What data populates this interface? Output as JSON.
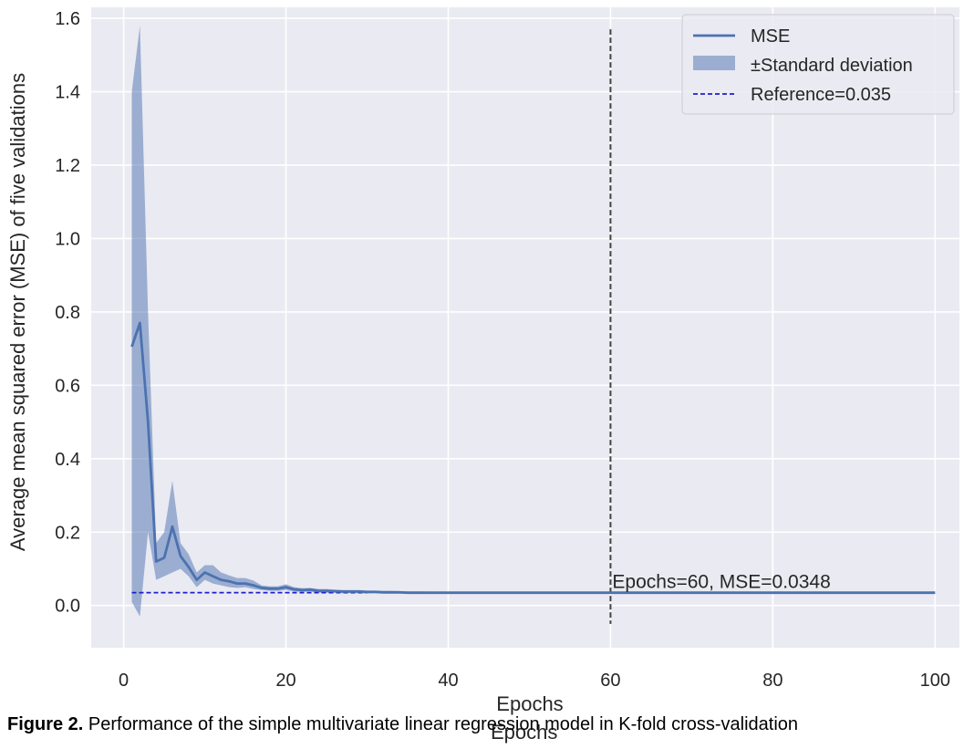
{
  "chart_data": {
    "type": "line",
    "xlabel": "Epochs",
    "ylabel": "Average mean squared error (MSE) of five validations",
    "xlim": [
      -4,
      103
    ],
    "ylim": [
      -0.115,
      1.63
    ],
    "xticks": [
      0,
      20,
      40,
      60,
      80,
      100
    ],
    "yticks": [
      0.0,
      0.2,
      0.4,
      0.6,
      0.8,
      1.0,
      1.2,
      1.4,
      1.6
    ],
    "xtick_labels": [
      "0",
      "20",
      "40",
      "60",
      "80",
      "100"
    ],
    "ytick_labels": [
      "0.0",
      "0.2",
      "0.4",
      "0.6",
      "0.8",
      "1.0",
      "1.2",
      "1.4",
      "1.6"
    ],
    "grid": true,
    "legend_position": "top-right",
    "colors": {
      "mse": "#4c72b0",
      "band": "#4c72b0",
      "reference": "#1f1fcc",
      "vline": "#444444",
      "background": "#eaeaf2",
      "grid": "#ffffff"
    },
    "series": [
      {
        "name": "MSE",
        "x": [
          1,
          2,
          3,
          4,
          5,
          6,
          7,
          8,
          9,
          10,
          11,
          12,
          13,
          14,
          15,
          16,
          17,
          18,
          19,
          20,
          21,
          22,
          23,
          24,
          25,
          26,
          27,
          28,
          29,
          30,
          31,
          32,
          33,
          34,
          35,
          36,
          37,
          38,
          39,
          40,
          45,
          50,
          55,
          60,
          65,
          70,
          75,
          80,
          85,
          90,
          95,
          100
        ],
        "y": [
          0.705,
          0.77,
          0.5,
          0.12,
          0.13,
          0.215,
          0.135,
          0.105,
          0.07,
          0.09,
          0.08,
          0.07,
          0.066,
          0.06,
          0.06,
          0.055,
          0.048,
          0.046,
          0.046,
          0.05,
          0.044,
          0.042,
          0.043,
          0.04,
          0.04,
          0.039,
          0.038,
          0.038,
          0.038,
          0.037,
          0.037,
          0.036,
          0.036,
          0.036,
          0.035,
          0.035,
          0.035,
          0.035,
          0.035,
          0.035,
          0.035,
          0.035,
          0.035,
          0.0348,
          0.035,
          0.035,
          0.035,
          0.035,
          0.035,
          0.035,
          0.035,
          0.035
        ]
      },
      {
        "name": "±Standard deviation",
        "x": [
          1,
          2,
          3,
          4,
          5,
          6,
          7,
          8,
          9,
          10,
          11,
          12,
          13,
          14,
          15,
          16,
          17,
          18,
          19,
          20,
          21,
          22,
          23,
          24,
          25,
          26,
          27,
          28,
          29,
          30,
          31,
          32,
          33,
          34,
          35,
          36,
          37,
          38,
          39,
          40,
          45,
          50,
          55,
          60,
          65,
          70,
          75,
          80,
          85,
          90,
          95,
          100
        ],
        "lower": [
          0.01,
          -0.03,
          0.2,
          0.07,
          0.08,
          0.09,
          0.1,
          0.08,
          0.05,
          0.07,
          0.06,
          0.055,
          0.05,
          0.048,
          0.05,
          0.045,
          0.042,
          0.04,
          0.04,
          0.042,
          0.038,
          0.037,
          0.038,
          0.035,
          0.035,
          0.035,
          0.034,
          0.034,
          0.034,
          0.033,
          0.034,
          0.033,
          0.033,
          0.033,
          0.032,
          0.033,
          0.033,
          0.033,
          0.033,
          0.033,
          0.033,
          0.033,
          0.033,
          0.033,
          0.033,
          0.033,
          0.033,
          0.033,
          0.033,
          0.033,
          0.033,
          0.033
        ],
        "upper": [
          1.4,
          1.58,
          0.8,
          0.17,
          0.2,
          0.34,
          0.17,
          0.14,
          0.09,
          0.11,
          0.11,
          0.09,
          0.082,
          0.075,
          0.075,
          0.068,
          0.055,
          0.052,
          0.052,
          0.058,
          0.05,
          0.047,
          0.048,
          0.045,
          0.045,
          0.043,
          0.042,
          0.042,
          0.042,
          0.041,
          0.041,
          0.04,
          0.04,
          0.039,
          0.038,
          0.038,
          0.038,
          0.037,
          0.037,
          0.037,
          0.037,
          0.037,
          0.037,
          0.037,
          0.037,
          0.037,
          0.037,
          0.037,
          0.037,
          0.037,
          0.037,
          0.037
        ]
      },
      {
        "name": "Reference=0.035",
        "x": [
          1,
          30
        ],
        "y": [
          0.035,
          0.035
        ]
      }
    ],
    "vline": {
      "x": 60,
      "ymin": -0.05,
      "ymax": 1.57
    },
    "annotation": {
      "text": "Epochs=60, MSE=0.0348",
      "x": 60,
      "y": 0.048
    }
  },
  "caption": {
    "bold": "Figure 2.",
    "text": " Performance of the simple multivariate linear regression model in K-fold cross-validation"
  },
  "ghost_label": "Epochs"
}
